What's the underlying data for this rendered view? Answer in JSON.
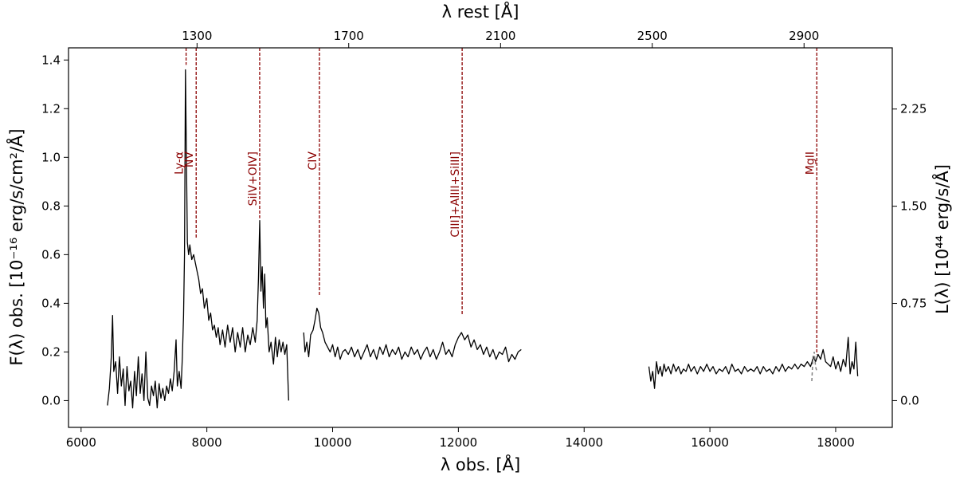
{
  "chart_data": {
    "type": "line",
    "title": "",
    "xlabel": "λ obs. [Å]",
    "ylabel": "F(λ) obs. [10⁻¹⁶ erg/s/cm²/Å]",
    "top_xlabel": "λ rest [Å]",
    "right_ylabel": "L(λ) [10⁴⁴ erg/s/Å]",
    "xlim": [
      5800,
      18900
    ],
    "ylim": [
      -0.11,
      1.45
    ],
    "xticks": [
      6000,
      8000,
      10000,
      12000,
      14000,
      16000,
      18000
    ],
    "yticks": [
      0.0,
      0.2,
      0.4,
      0.6,
      0.8,
      1.0,
      1.2,
      1.4
    ],
    "top_ticks": [
      {
        "rest": "1300",
        "obs": 7844
      },
      {
        "rest": "1700",
        "obs": 10256
      },
      {
        "rest": "2100",
        "obs": 12671
      },
      {
        "rest": "2500",
        "obs": 15083
      },
      {
        "rest": "2900",
        "obs": 17497
      }
    ],
    "right_ticks": [
      {
        "label": "0.0",
        "flux": 0.0
      },
      {
        "label": "0.75",
        "flux": 0.3995
      },
      {
        "label": "1.50",
        "flux": 0.799
      },
      {
        "label": "2.25",
        "flux": 1.1985
      }
    ],
    "line_color": "#000000",
    "marker_color": "#8b0000",
    "dashed_segment_color": "#808080",
    "emission_lines": [
      {
        "name": "Ly-α",
        "x": 7670,
        "ytop": 1.45,
        "ybottom": 1.38
      },
      {
        "name": "NV",
        "x": 7830,
        "ytop": 1.45,
        "ybottom": 0.67
      },
      {
        "name": "SiIV+OIV]",
        "x": 8840,
        "ytop": 1.45,
        "ybottom": 0.75
      },
      {
        "name": "CIV",
        "x": 9790,
        "ytop": 1.45,
        "ybottom": 0.43
      },
      {
        "name": "CIII]+AlIII+SiIII]",
        "x": 12060,
        "ytop": 1.45,
        "ybottom": 0.35
      },
      {
        "name": "MgII",
        "x": 17700,
        "ytop": 1.45,
        "ybottom": 0.19
      }
    ],
    "series": [
      {
        "points": [
          [
            6420,
            -0.02
          ],
          [
            6450,
            0.05
          ],
          [
            6480,
            0.18
          ],
          [
            6500,
            0.35
          ],
          [
            6520,
            0.12
          ],
          [
            6550,
            0.16
          ],
          [
            6580,
            0.03
          ],
          [
            6610,
            0.18
          ],
          [
            6640,
            0.06
          ],
          [
            6670,
            0.13
          ],
          [
            6700,
            -0.02
          ],
          [
            6730,
            0.14
          ],
          [
            6760,
            0.04
          ],
          [
            6790,
            0.08
          ],
          [
            6820,
            -0.03
          ],
          [
            6850,
            0.12
          ],
          [
            6880,
            0.02
          ],
          [
            6910,
            0.18
          ],
          [
            6940,
            0.03
          ],
          [
            6970,
            0.11
          ],
          [
            7000,
            0.0
          ],
          [
            7030,
            0.2
          ],
          [
            7060,
            0.01
          ],
          [
            7090,
            -0.02
          ],
          [
            7120,
            0.06
          ],
          [
            7150,
            0.02
          ],
          [
            7180,
            0.08
          ],
          [
            7210,
            -0.03
          ],
          [
            7240,
            0.07
          ],
          [
            7270,
            0.01
          ],
          [
            7300,
            0.05
          ],
          [
            7330,
            0.0
          ],
          [
            7360,
            0.06
          ],
          [
            7390,
            0.03
          ],
          [
            7420,
            0.09
          ],
          [
            7450,
            0.04
          ],
          [
            7480,
            0.12
          ],
          [
            7510,
            0.25
          ],
          [
            7530,
            0.06
          ],
          [
            7560,
            0.12
          ],
          [
            7590,
            0.05
          ],
          [
            7610,
            0.18
          ],
          [
            7630,
            0.35
          ],
          [
            7645,
            0.6
          ],
          [
            7660,
            1.36
          ],
          [
            7675,
            1.0
          ],
          [
            7690,
            0.65
          ],
          [
            7710,
            0.6
          ],
          [
            7730,
            0.64
          ],
          [
            7760,
            0.58
          ],
          [
            7790,
            0.6
          ],
          [
            7830,
            0.55
          ],
          [
            7870,
            0.5
          ],
          [
            7900,
            0.44
          ],
          [
            7930,
            0.46
          ],
          [
            7960,
            0.38
          ],
          [
            8000,
            0.42
          ],
          [
            8030,
            0.33
          ],
          [
            8060,
            0.36
          ],
          [
            8090,
            0.29
          ],
          [
            8120,
            0.31
          ],
          [
            8150,
            0.26
          ],
          [
            8180,
            0.3
          ],
          [
            8210,
            0.23
          ],
          [
            8250,
            0.29
          ],
          [
            8290,
            0.22
          ],
          [
            8330,
            0.31
          ],
          [
            8370,
            0.24
          ],
          [
            8410,
            0.3
          ],
          [
            8450,
            0.2
          ],
          [
            8490,
            0.28
          ],
          [
            8530,
            0.22
          ],
          [
            8570,
            0.3
          ],
          [
            8610,
            0.2
          ],
          [
            8650,
            0.27
          ],
          [
            8690,
            0.23
          ],
          [
            8730,
            0.3
          ],
          [
            8770,
            0.24
          ],
          [
            8800,
            0.33
          ],
          [
            8820,
            0.5
          ],
          [
            8840,
            0.74
          ],
          [
            8860,
            0.45
          ],
          [
            8880,
            0.55
          ],
          [
            8900,
            0.38
          ],
          [
            8920,
            0.52
          ],
          [
            8940,
            0.3
          ],
          [
            8960,
            0.34
          ],
          [
            8990,
            0.2
          ],
          [
            9020,
            0.24
          ],
          [
            9060,
            0.15
          ],
          [
            9090,
            0.26
          ],
          [
            9120,
            0.18
          ],
          [
            9150,
            0.25
          ],
          [
            9180,
            0.2
          ],
          [
            9210,
            0.24
          ],
          [
            9240,
            0.19
          ],
          [
            9270,
            0.23
          ],
          [
            9300,
            0.0
          ]
        ]
      },
      {
        "points": [
          [
            9540,
            0.28
          ],
          [
            9560,
            0.2
          ],
          [
            9590,
            0.24
          ],
          [
            9620,
            0.18
          ],
          [
            9650,
            0.27
          ],
          [
            9690,
            0.29
          ],
          [
            9720,
            0.33
          ],
          [
            9750,
            0.38
          ],
          [
            9780,
            0.36
          ],
          [
            9810,
            0.3
          ],
          [
            9840,
            0.28
          ],
          [
            9880,
            0.24
          ],
          [
            9920,
            0.22
          ],
          [
            9960,
            0.2
          ],
          [
            10000,
            0.23
          ],
          [
            10040,
            0.18
          ],
          [
            10080,
            0.22
          ],
          [
            10120,
            0.17
          ],
          [
            10160,
            0.2
          ],
          [
            10200,
            0.21
          ],
          [
            10250,
            0.19
          ],
          [
            10300,
            0.22
          ],
          [
            10350,
            0.18
          ],
          [
            10400,
            0.21
          ],
          [
            10450,
            0.17
          ],
          [
            10500,
            0.2
          ],
          [
            10550,
            0.23
          ],
          [
            10600,
            0.18
          ],
          [
            10650,
            0.21
          ],
          [
            10700,
            0.17
          ],
          [
            10750,
            0.22
          ],
          [
            10800,
            0.19
          ],
          [
            10850,
            0.23
          ],
          [
            10900,
            0.18
          ],
          [
            10950,
            0.21
          ],
          [
            11000,
            0.19
          ],
          [
            11050,
            0.22
          ],
          [
            11100,
            0.17
          ],
          [
            11150,
            0.2
          ],
          [
            11200,
            0.18
          ],
          [
            11250,
            0.22
          ],
          [
            11300,
            0.19
          ],
          [
            11350,
            0.21
          ],
          [
            11400,
            0.17
          ],
          [
            11450,
            0.2
          ],
          [
            11500,
            0.22
          ],
          [
            11550,
            0.18
          ],
          [
            11600,
            0.21
          ],
          [
            11650,
            0.17
          ],
          [
            11700,
            0.2
          ],
          [
            11750,
            0.24
          ],
          [
            11800,
            0.19
          ],
          [
            11850,
            0.21
          ],
          [
            11900,
            0.18
          ],
          [
            11950,
            0.23
          ],
          [
            12000,
            0.26
          ],
          [
            12050,
            0.28
          ],
          [
            12100,
            0.25
          ],
          [
            12150,
            0.27
          ],
          [
            12200,
            0.22
          ],
          [
            12250,
            0.25
          ],
          [
            12300,
            0.21
          ],
          [
            12350,
            0.23
          ],
          [
            12400,
            0.19
          ],
          [
            12450,
            0.22
          ],
          [
            12500,
            0.18
          ],
          [
            12550,
            0.21
          ],
          [
            12600,
            0.17
          ],
          [
            12650,
            0.2
          ],
          [
            12700,
            0.19
          ],
          [
            12750,
            0.22
          ],
          [
            12800,
            0.16
          ],
          [
            12850,
            0.19
          ],
          [
            12900,
            0.17
          ],
          [
            12950,
            0.2
          ],
          [
            13000,
            0.21
          ]
        ]
      },
      {
        "points": [
          [
            15030,
            0.14
          ],
          [
            15060,
            0.08
          ],
          [
            15090,
            0.12
          ],
          [
            15120,
            0.05
          ],
          [
            15150,
            0.16
          ],
          [
            15180,
            0.11
          ],
          [
            15210,
            0.14
          ],
          [
            15240,
            0.1
          ],
          [
            15270,
            0.15
          ],
          [
            15300,
            0.12
          ],
          [
            15340,
            0.14
          ],
          [
            15380,
            0.11
          ],
          [
            15420,
            0.15
          ],
          [
            15460,
            0.12
          ],
          [
            15500,
            0.14
          ],
          [
            15540,
            0.11
          ],
          [
            15580,
            0.13
          ],
          [
            15620,
            0.12
          ],
          [
            15660,
            0.15
          ],
          [
            15700,
            0.12
          ],
          [
            15750,
            0.14
          ],
          [
            15800,
            0.11
          ],
          [
            15850,
            0.14
          ],
          [
            15900,
            0.12
          ],
          [
            15950,
            0.15
          ],
          [
            16000,
            0.12
          ],
          [
            16050,
            0.14
          ],
          [
            16100,
            0.11
          ],
          [
            16150,
            0.13
          ],
          [
            16200,
            0.12
          ],
          [
            16250,
            0.14
          ],
          [
            16300,
            0.11
          ],
          [
            16350,
            0.15
          ],
          [
            16400,
            0.12
          ],
          [
            16450,
            0.13
          ],
          [
            16500,
            0.11
          ],
          [
            16550,
            0.14
          ],
          [
            16600,
            0.12
          ],
          [
            16650,
            0.13
          ],
          [
            16700,
            0.12
          ],
          [
            16750,
            0.14
          ],
          [
            16800,
            0.11
          ],
          [
            16850,
            0.14
          ],
          [
            16900,
            0.12
          ],
          [
            16950,
            0.13
          ],
          [
            17000,
            0.11
          ],
          [
            17050,
            0.14
          ],
          [
            17100,
            0.12
          ],
          [
            17150,
            0.15
          ],
          [
            17200,
            0.12
          ],
          [
            17250,
            0.14
          ],
          [
            17300,
            0.13
          ],
          [
            17350,
            0.15
          ],
          [
            17400,
            0.13
          ],
          [
            17450,
            0.15
          ],
          [
            17500,
            0.14
          ],
          [
            17550,
            0.16
          ],
          [
            17600,
            0.14
          ],
          [
            17650,
            0.18
          ],
          [
            17680,
            0.16
          ],
          [
            17720,
            0.19
          ],
          [
            17760,
            0.17
          ],
          [
            17800,
            0.21
          ],
          [
            17840,
            0.16
          ],
          [
            17880,
            0.15
          ],
          [
            17920,
            0.14
          ],
          [
            17960,
            0.18
          ],
          [
            18000,
            0.13
          ],
          [
            18040,
            0.16
          ],
          [
            18080,
            0.12
          ],
          [
            18120,
            0.17
          ],
          [
            18160,
            0.14
          ],
          [
            18200,
            0.26
          ],
          [
            18230,
            0.11
          ],
          [
            18260,
            0.16
          ],
          [
            18290,
            0.13
          ],
          [
            18320,
            0.24
          ],
          [
            18350,
            0.1
          ]
        ]
      }
    ],
    "dashed_segment": [
      [
        17620,
        0.08
      ],
      [
        17640,
        0.18
      ],
      [
        17660,
        0.2
      ],
      [
        17680,
        0.14
      ],
      [
        17700,
        0.12
      ]
    ]
  }
}
